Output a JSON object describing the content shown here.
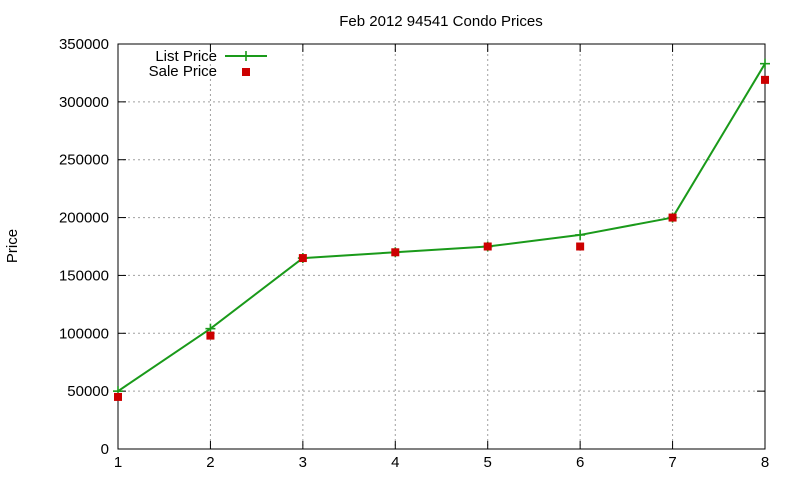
{
  "chart_data": {
    "type": "line",
    "title": "Feb 2012 94541 Condo Prices",
    "xlabel": "",
    "ylabel": "Price",
    "x": [
      1,
      2,
      3,
      4,
      5,
      6,
      7,
      8
    ],
    "xlim": [
      1,
      8
    ],
    "ylim": [
      0,
      350000
    ],
    "xticks": [
      "1",
      "2",
      "3",
      "4",
      "5",
      "6",
      "7",
      "8"
    ],
    "yticks": [
      "0",
      "50000",
      "100000",
      "150000",
      "200000",
      "250000",
      "300000",
      "350000"
    ],
    "grid": true,
    "legend_position": "top-left",
    "series": [
      {
        "name": "List Price",
        "style": "linespoints",
        "marker": "plus",
        "color": "#1a9a1a",
        "values": [
          50000,
          104000,
          165000,
          170000,
          175000,
          185000,
          200000,
          333000
        ]
      },
      {
        "name": "Sale Price",
        "style": "points",
        "marker": "square",
        "color": "#cc0000",
        "values": [
          45000,
          98000,
          165000,
          170000,
          175000,
          175000,
          200000,
          319000
        ]
      }
    ]
  }
}
